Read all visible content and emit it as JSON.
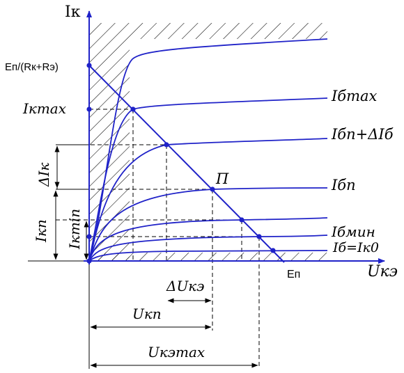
{
  "diagram": {
    "axis_y_label": "Iк",
    "axis_x_label": "Uкэ",
    "label_ek_over_r": "Еп/(Rк+Rэ)",
    "label_ik_max": "Iкmax",
    "label_ib_max": "Iбmax",
    "label_ib_p_plus": "Iбп+ΔIб",
    "label_p": "П",
    "label_ib_p": "Iбп",
    "label_ib_min": "Iбмин",
    "label_ib_ik0": "Iб=Iк0",
    "label_ep": "Еп",
    "label_delta_ik": "ΔIк",
    "label_ik_p": "Iкп",
    "label_ik_min": "Iкmin",
    "label_delta_uke": "ΔUкэ",
    "label_uk_p": "Uкп",
    "label_uke_max": "Uкэmax"
  },
  "colors": {
    "curves": "#1f22c8",
    "hatching": "#000000"
  }
}
